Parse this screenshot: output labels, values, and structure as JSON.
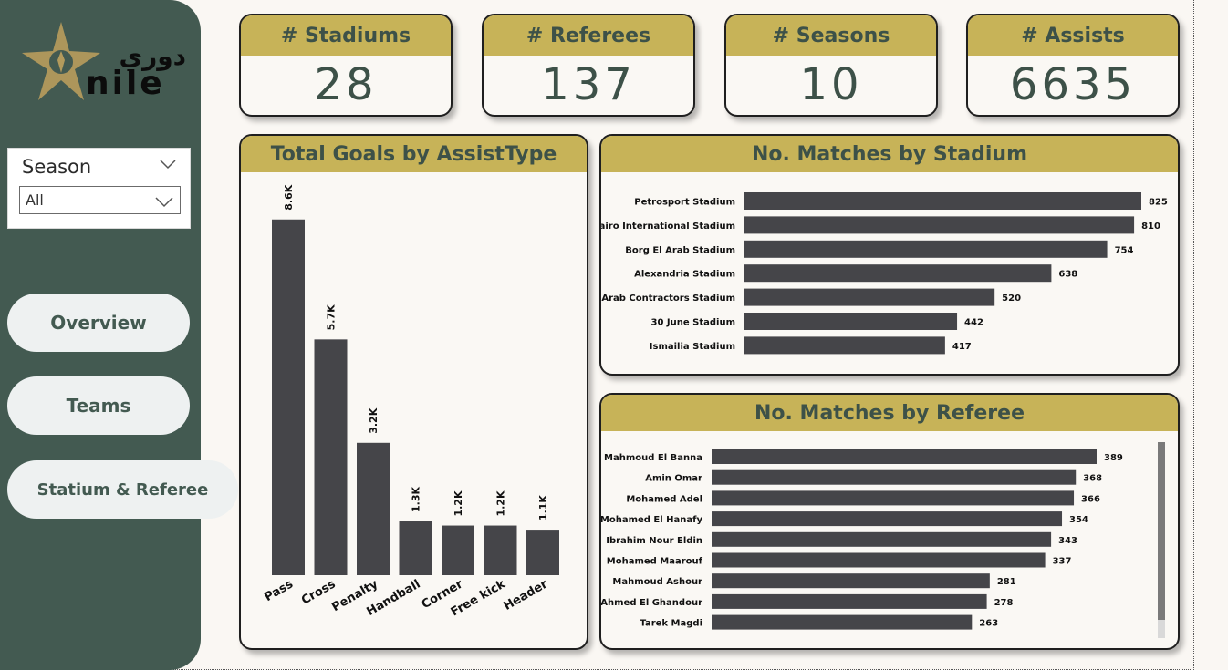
{
  "sidebar": {
    "logo_arabic": "دوري",
    "logo_latin": "nile",
    "slicer": {
      "title": "Season",
      "value": "All"
    },
    "nav": [
      {
        "label": "Overview"
      },
      {
        "label": "Teams"
      },
      {
        "label": "Statium & Referee"
      }
    ]
  },
  "kpis": [
    {
      "label": "# Stadiums",
      "value": "28"
    },
    {
      "label": "# Referees",
      "value": "137"
    },
    {
      "label": "# Seasons",
      "value": "10"
    },
    {
      "label": "# Assists",
      "value": "6635"
    }
  ],
  "colors": {
    "sidebar": "#435a51",
    "header": "#c7b358",
    "bar": "#454549",
    "accent_text": "#3d5148"
  },
  "chart_data": [
    {
      "type": "bar",
      "title": "Total Goals by AssistType",
      "categories": [
        "Pass",
        "Cross",
        "Penalty",
        "Handball",
        "Corner",
        "Free kick",
        "Header"
      ],
      "values": [
        8600,
        5700,
        3200,
        1300,
        1200,
        1200,
        1100
      ],
      "data_labels": [
        "8.6K",
        "5.7K",
        "3.2K",
        "1.3K",
        "1.2K",
        "1.2K",
        "1.1K"
      ],
      "ylim": [
        0,
        9300
      ]
    },
    {
      "type": "bar",
      "orientation": "horizontal",
      "title": "No. Matches by Stadium",
      "categories": [
        "Petrosport Stadium",
        "Cairo International Stadium",
        "Borg El Arab Stadium",
        "Alexandria Stadium",
        "Arab Contractors Stadium",
        "30 June Stadium",
        "Ismailia Stadium"
      ],
      "values": [
        825,
        810,
        754,
        638,
        520,
        442,
        417
      ],
      "xlim": [
        0,
        825
      ]
    },
    {
      "type": "bar",
      "orientation": "horizontal",
      "title": "No. Matches by Referee",
      "categories": [
        "Mahmoud El Banna",
        "Amin Omar",
        "Mohamed Adel",
        "Mohamed El Hanafy",
        "Ibrahim Nour Eldin",
        "Mohamed Maarouf",
        "Mahmoud Ashour",
        "Ahmed El Ghandour",
        "Tarek Magdi"
      ],
      "values": [
        389,
        368,
        366,
        354,
        343,
        337,
        281,
        278,
        263
      ],
      "xlim": [
        0,
        389
      ]
    }
  ]
}
